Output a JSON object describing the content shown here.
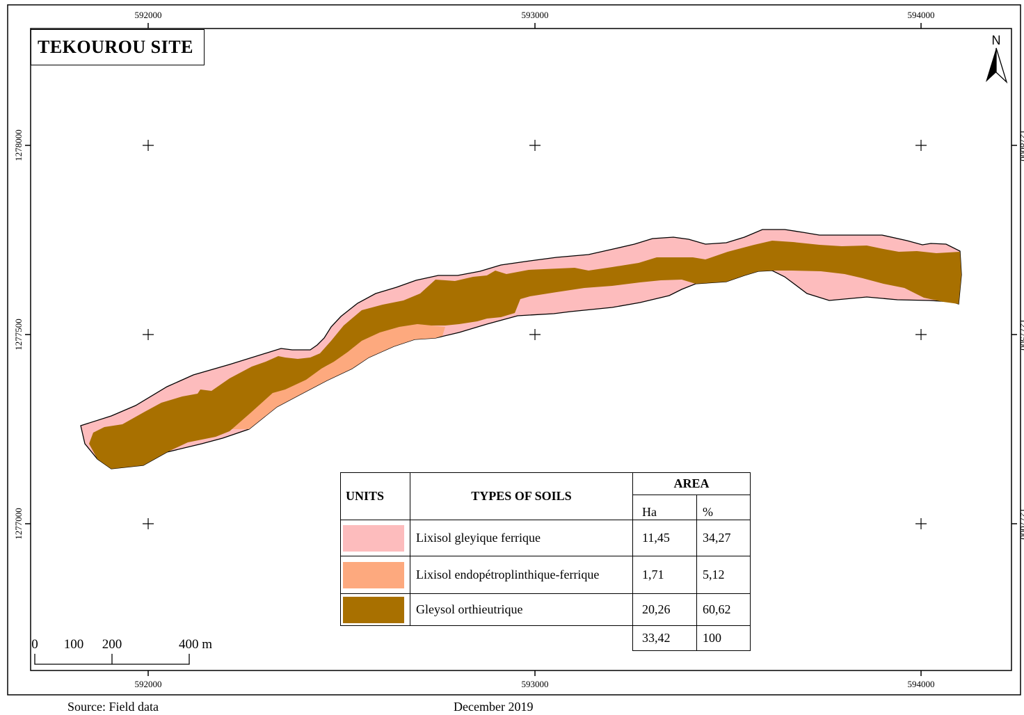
{
  "title": "TEKOUROU SITE",
  "north_label": "N",
  "grid": {
    "x_labels": [
      "592000",
      "593000",
      "594000"
    ],
    "y_labels": [
      "1278000",
      "1277500",
      "1277000"
    ]
  },
  "scale_bar": {
    "labels": [
      "0",
      "100",
      "200",
      "400 m"
    ]
  },
  "legend": {
    "header_units": "UNITS",
    "header_types": "TYPES OF SOILS",
    "header_area": "AREA",
    "header_ha": "Ha",
    "header_pct": "%",
    "rows": [
      {
        "color": "#FDBCBD",
        "name": "Lixisol gleyique ferrique",
        "ha": "11,45",
        "pct": "34,27"
      },
      {
        "color": "#FDA97E",
        "name": "Lixisol endopétroplinthique-ferrique",
        "ha": "1,71",
        "pct": "5,12"
      },
      {
        "color": "#A87000",
        "name": "Gleysol orthieutrique",
        "ha": "20,26",
        "pct": "60,62"
      }
    ],
    "total_ha": "33,42",
    "total_pct": "100"
  },
  "footer": {
    "source": "Source: Field data",
    "date": "December 2019"
  }
}
